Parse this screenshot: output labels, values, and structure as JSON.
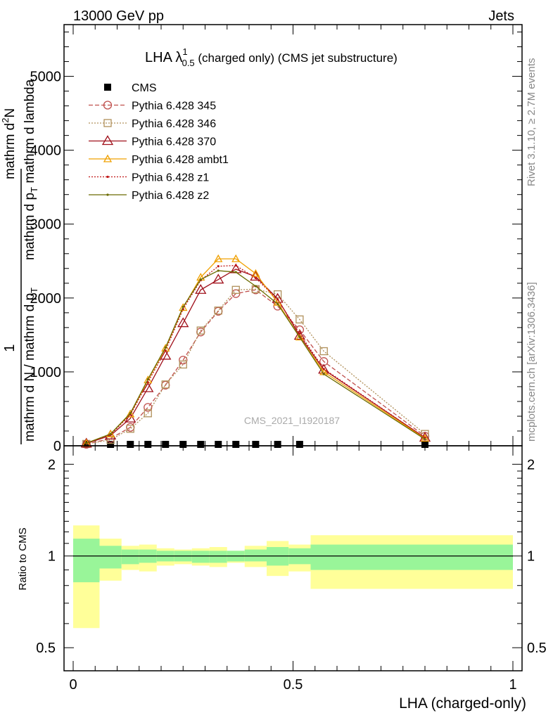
{
  "header": {
    "left": "13000 GeV pp",
    "right": "Jets"
  },
  "side": {
    "rivet": "Rivet 3.1.10, ≥ 2.7M events",
    "mcplots": "mcplots.cern.ch [arXiv:1306.3436]"
  },
  "title": {
    "main": "LHA λ",
    "sup": "1",
    "sub": "0.5",
    "rest": " (charged only) (CMS jet substructure)"
  },
  "watermark": "CMS_2021_I1920187",
  "ylabel_top": {
    "num": "1",
    "den_top": "mathrm d N / mathrm d p",
    "den_top_sub": "T",
    "num_frac": "mathrm d",
    "num_frac_sup": "2",
    "num_frac_rest": "N",
    "den_frac": "mathrm d p",
    "den_frac_sub": "T",
    "den_frac_rest": " mathrm d lambda"
  },
  "ylabel_bottom": "Ratio to CMS",
  "xlabel": "LHA (charged-only)",
  "colors": {
    "cms": "#000000",
    "p345": "#c0504d",
    "p346": "#b0905a",
    "p370": "#a0101b",
    "ambt1": "#f0a000",
    "z1": "#c01818",
    "z2": "#6b6b00",
    "band_inner": "#99f599",
    "band_outer": "#ffff99"
  },
  "chart_data": [
    {
      "type": "line",
      "xlim": [
        0,
        1
      ],
      "ylim": [
        0,
        5700
      ],
      "yticks": [
        0,
        1000,
        2000,
        3000,
        4000,
        5000
      ],
      "ytick_labels": [
        "0",
        "1000",
        "2000",
        "3000",
        "4000",
        "5000"
      ],
      "legend_position": "top-left",
      "x": [
        0.03,
        0.085,
        0.13,
        0.17,
        0.21,
        0.25,
        0.29,
        0.33,
        0.37,
        0.415,
        0.465,
        0.515,
        0.57,
        0.8
      ],
      "series": [
        {
          "name": "CMS",
          "style": "cms",
          "marker": "square",
          "values": [
            0,
            0,
            0,
            0,
            0,
            0,
            0,
            0,
            0,
            0,
            0,
            0,
            0,
            0
          ]
        },
        {
          "name": "Pythia 6.428 345",
          "style": "p345",
          "marker": "circle",
          "dash": "6,3",
          "values": [
            20,
            100,
            250,
            520,
            820,
            1160,
            1540,
            1820,
            2060,
            2110,
            1890,
            1570,
            1140,
            130
          ]
        },
        {
          "name": "Pythia 6.428 346",
          "style": "p346",
          "marker": "square-open",
          "dash": "2,2",
          "values": [
            25,
            80,
            230,
            440,
            830,
            1100,
            1560,
            1830,
            2110,
            2120,
            2050,
            1710,
            1280,
            160
          ]
        },
        {
          "name": "Pythia 6.428 370",
          "style": "p370",
          "marker": "triangle",
          "values": [
            30,
            140,
            370,
            780,
            1220,
            1660,
            2110,
            2250,
            2390,
            2290,
            1990,
            1490,
            1030,
            110
          ]
        },
        {
          "name": "Pythia 6.428 ambt1",
          "style": "ambt1",
          "marker": "triangle-small",
          "values": [
            35,
            160,
            430,
            890,
            1320,
            1870,
            2280,
            2530,
            2530,
            2330,
            1940,
            1470,
            1000,
            100
          ]
        },
        {
          "name": "Pythia 6.428 z1",
          "style": "z1",
          "marker": "dot",
          "dash": "2,2",
          "values": [
            30,
            150,
            420,
            860,
            1290,
            1850,
            2240,
            2430,
            2440,
            2270,
            1980,
            1520,
            1040,
            110
          ]
        },
        {
          "name": "Pythia 6.428 z2",
          "style": "z2",
          "marker": "dot",
          "values": [
            35,
            160,
            440,
            900,
            1330,
            1880,
            2250,
            2370,
            2350,
            2160,
            1920,
            1470,
            970,
            90
          ]
        }
      ]
    },
    {
      "type": "area",
      "title": "",
      "ylabel": "Ratio to CMS",
      "xlabel": "LHA (charged-only)",
      "xlim": [
        0,
        1
      ],
      "ylim": [
        0.42,
        2.3
      ],
      "xticks": [
        0,
        0.5,
        1
      ],
      "xtick_labels": [
        "0",
        "0.5",
        "1"
      ],
      "yticks": [
        0.5,
        1,
        2
      ],
      "ytick_labels": [
        "0.5",
        "1",
        "2"
      ],
      "bin_edges": [
        0,
        0.06,
        0.11,
        0.15,
        0.19,
        0.23,
        0.27,
        0.31,
        0.35,
        0.39,
        0.44,
        0.49,
        0.54,
        0.6,
        1.0
      ],
      "inner": {
        "lo": [
          0.82,
          0.91,
          0.94,
          0.95,
          0.96,
          0.96,
          0.95,
          0.95,
          0.96,
          0.96,
          0.93,
          0.94,
          0.9,
          0.9
        ],
        "hi": [
          1.14,
          1.08,
          1.05,
          1.05,
          1.04,
          1.04,
          1.04,
          1.04,
          1.04,
          1.05,
          1.07,
          1.06,
          1.09,
          1.09
        ]
      },
      "outer": {
        "lo": [
          0.58,
          0.83,
          0.9,
          0.89,
          0.93,
          0.94,
          0.93,
          0.92,
          0.95,
          0.92,
          0.86,
          0.89,
          0.78,
          0.78
        ],
        "hi": [
          1.26,
          1.14,
          1.08,
          1.09,
          1.06,
          1.05,
          1.06,
          1.07,
          1.04,
          1.08,
          1.12,
          1.09,
          1.17,
          1.17
        ]
      },
      "reference": 1
    }
  ]
}
